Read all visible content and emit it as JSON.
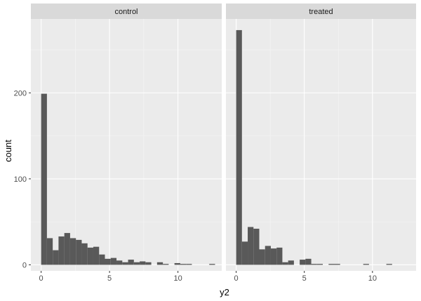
{
  "chart_data": {
    "type": "bar",
    "subtype": "faceted-histogram",
    "xlabel": "y2",
    "ylabel": "count",
    "xlim": [
      -0.75,
      13.2
    ],
    "ylim": [
      -7,
      286
    ],
    "x_ticks": [
      0,
      5,
      10
    ],
    "y_ticks": [
      0,
      100,
      200
    ],
    "bin_width": 0.4237,
    "grid": true,
    "colors": {
      "bar": "#595959",
      "panel_bg": "#ebebeb",
      "strip_bg": "#d9d9d9",
      "grid_major": "#ffffff",
      "grid_minor": "#f5f5f5"
    },
    "facets": [
      {
        "label": "control",
        "bins_start": [
          0,
          0.4237,
          0.8475,
          1.2712,
          1.6949,
          2.1186,
          2.5424,
          2.9661,
          3.3898,
          3.8136,
          4.2373,
          4.661,
          5.0847,
          5.5085,
          5.9322,
          6.3559,
          6.7797,
          7.2034,
          7.6271,
          8.0508,
          8.4746,
          8.8983,
          9.322,
          9.7458,
          10.1695,
          10.5932,
          11.0169,
          11.4407,
          11.8644,
          12.2881
        ],
        "counts": [
          199,
          31,
          17,
          33,
          37,
          31,
          29,
          25,
          20,
          21,
          12,
          7,
          8,
          5,
          3,
          6,
          3,
          4,
          3,
          0,
          3,
          1,
          0,
          2,
          1,
          1,
          0,
          0,
          0,
          1
        ]
      },
      {
        "label": "treated",
        "bins_start": [
          0,
          0.4237,
          0.8475,
          1.2712,
          1.6949,
          2.1186,
          2.5424,
          2.9661,
          3.3898,
          3.8136,
          4.2373,
          4.661,
          5.0847,
          5.5085,
          5.9322,
          6.3559,
          6.7797,
          7.2034,
          7.6271,
          8.0508,
          8.4746,
          8.8983,
          9.322,
          9.7458,
          10.1695,
          10.5932,
          11.0169,
          11.4407,
          11.8644,
          12.2881
        ],
        "counts": [
          273,
          27,
          44,
          42,
          18,
          22,
          19,
          20,
          3,
          5,
          0,
          6,
          7,
          1,
          1,
          0,
          1,
          1,
          0,
          0,
          0,
          0,
          1,
          0,
          0,
          0,
          1,
          0,
          0,
          0
        ]
      }
    ]
  }
}
